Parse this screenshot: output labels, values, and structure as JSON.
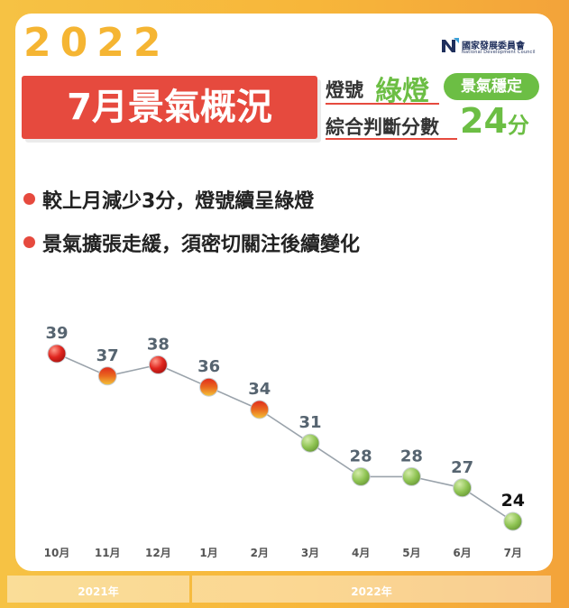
{
  "header": {
    "year": "2022",
    "banner_title": "7月景氣概況",
    "signal_label": "燈號",
    "signal_value": "綠燈",
    "badge": "景氣穩定",
    "score_label": "綜合判斷分數",
    "score_value": "24",
    "score_unit": "分"
  },
  "logo": {
    "name_zh": "國家發展委員會",
    "name_en": "National Development Council"
  },
  "bullets": [
    "較上月減少3分，燈號續呈綠燈",
    "景氣擴張走緩，須密切關注後續變化"
  ],
  "colors": {
    "red_light": "#e0261f",
    "yellow_red_light": "#e98b23",
    "green_light": "#8ec352",
    "accent_red": "#e64a3e",
    "accent_green": "#6cbe44",
    "gold": "#f5b533"
  },
  "chart_data": {
    "type": "line",
    "categories": [
      "10月",
      "11月",
      "12月",
      "1月",
      "2月",
      "3月",
      "4月",
      "5月",
      "6月",
      "7月"
    ],
    "values": [
      39,
      37,
      38,
      36,
      34,
      31,
      28,
      28,
      27,
      24
    ],
    "signals": [
      "red",
      "yellow-red",
      "red",
      "yellow-red",
      "yellow-red",
      "green",
      "green",
      "green",
      "green",
      "green"
    ],
    "year_groups": [
      {
        "label": "2021年",
        "months": [
          "10月",
          "11月",
          "12月"
        ]
      },
      {
        "label": "2022年",
        "months": [
          "1月",
          "2月",
          "3月",
          "4月",
          "5月",
          "6月",
          "7月"
        ]
      }
    ],
    "highlight_last": true,
    "grid": false
  }
}
